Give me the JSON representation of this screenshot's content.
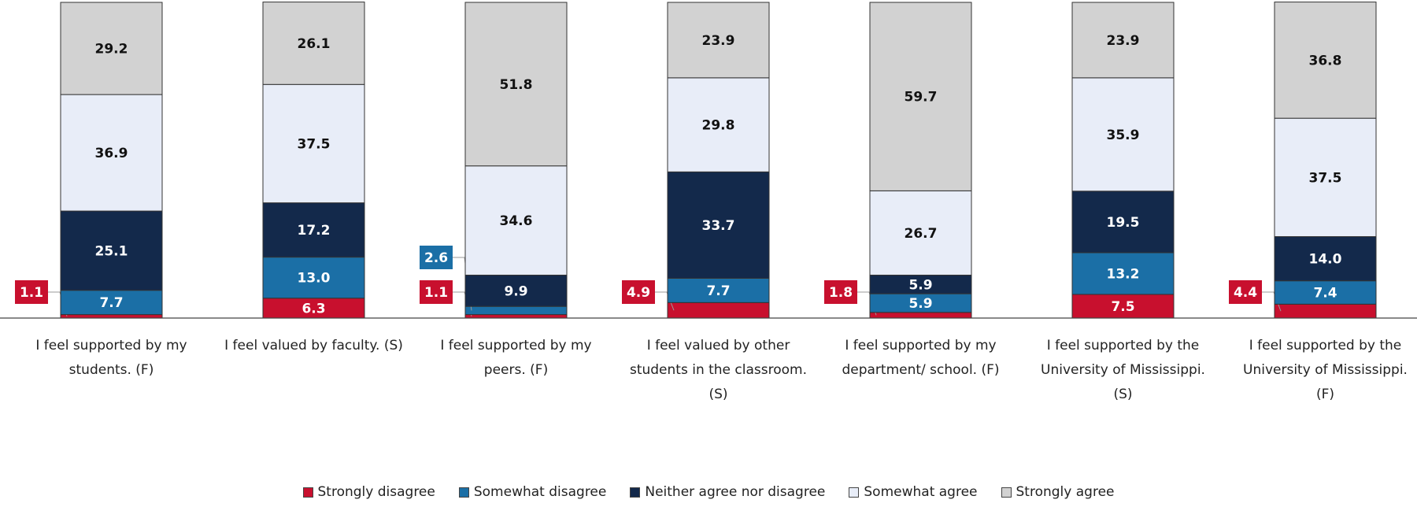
{
  "chart_data": {
    "type": "stacked_bar",
    "categories": [
      "I feel supported by my students. (F)",
      "I feel valued by faculty. (S)",
      "I feel supported by my peers. (F)",
      "I feel valued by other students in the classroom. (S)",
      "I feel supported by my department/ school. (F)",
      "I feel supported by the University of Mississippi. (S)",
      "I feel supported by the University of Mississippi. (F)"
    ],
    "series": [
      {
        "name": "Strongly disagree",
        "color": "#c8102e",
        "values": [
          1.1,
          6.3,
          1.1,
          4.9,
          1.8,
          7.5,
          4.4
        ],
        "value_labels": [
          "1.1",
          "6.3",
          "1.1",
          "4.9",
          "1.8",
          "7.5",
          "4.4"
        ]
      },
      {
        "name": "Somewhat disagree",
        "color": "#1b6fa6",
        "values": [
          7.7,
          13.0,
          2.6,
          7.7,
          5.9,
          13.2,
          7.4
        ],
        "value_labels": [
          "7.7",
          "13.0",
          "2.6",
          "7.7",
          "5.9",
          "13.2",
          "7.4"
        ]
      },
      {
        "name": "Neither agree nor disagree",
        "color": "#13294b",
        "values": [
          25.1,
          17.2,
          9.9,
          33.7,
          5.9,
          19.5,
          14.0
        ],
        "value_labels": [
          "25.1",
          "17.2",
          "9.9",
          "33.7",
          "5.9",
          "19.5",
          "14.0"
        ]
      },
      {
        "name": "Somewhat agree",
        "color": "#e8edf8",
        "values": [
          36.9,
          37.5,
          34.6,
          29.8,
          26.7,
          35.9,
          37.5
        ],
        "value_labels": [
          "36.9",
          "37.5",
          "34.6",
          "29.8",
          "26.7",
          "35.9",
          "37.5"
        ]
      },
      {
        "name": "Strongly agree",
        "color": "#d2d2d2",
        "values": [
          29.2,
          26.1,
          51.8,
          23.9,
          59.7,
          23.9,
          36.8
        ],
        "value_labels": [
          "29.2",
          "26.1",
          "51.8",
          "23.9",
          "59.7",
          "23.9",
          "36.8"
        ]
      }
    ],
    "ylim": [
      0,
      100
    ],
    "legend": "bottom"
  }
}
